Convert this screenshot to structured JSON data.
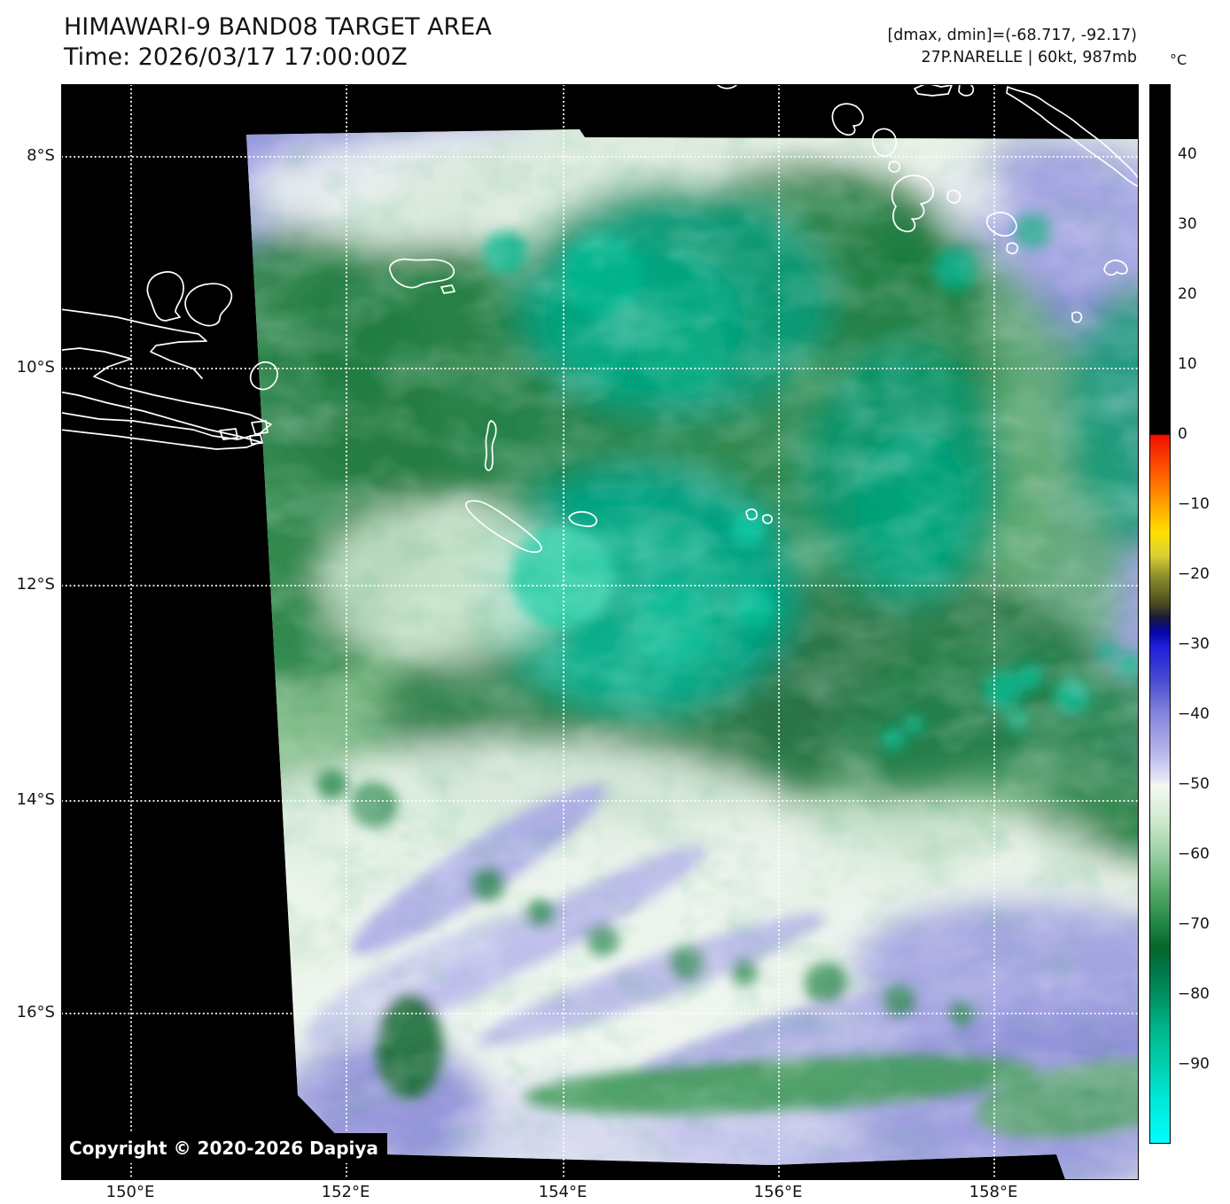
{
  "header": {
    "title": "HIMAWARI-9 BAND08 TARGET AREA",
    "time": "Time: 2026/03/17 17:00:00Z",
    "dmax_dmin": "[dmax, dmin]=(-68.717, -92.17)",
    "storm_info": "27P.NARELLE | 60kt, 987mb"
  },
  "map": {
    "copyright": "Copyright © 2020-2026 Dapiya",
    "x_tick_labels": [
      "150°E",
      "152°E",
      "154°E",
      "156°E",
      "158°E"
    ],
    "y_tick_labels": [
      "8°S",
      "10°S",
      "12°S",
      "14°S",
      "16°S"
    ]
  },
  "colorbar": {
    "unit": "°C",
    "tick_labels": [
      "40",
      "30",
      "20",
      "10",
      "0",
      "−10",
      "−20",
      "−30",
      "−40",
      "−50",
      "−60",
      "−70",
      "−80",
      "−90"
    ],
    "gradient_stops": [
      [
        "0%",
        "#000000"
      ],
      [
        "33.0%",
        "#000000"
      ],
      [
        "33.15%",
        "#f01000"
      ],
      [
        "36.4%",
        "#ff5500"
      ],
      [
        "39.7%",
        "#ffa300"
      ],
      [
        "42.3%",
        "#ffe000"
      ],
      [
        "44.5%",
        "#d8d034"
      ],
      [
        "46.4%",
        "#8f8f2c"
      ],
      [
        "49.0%",
        "#4c4c20"
      ],
      [
        "50.4%",
        "#17173c"
      ],
      [
        "51.7%",
        "#0505a8"
      ],
      [
        "53.0%",
        "#1d1dd8"
      ],
      [
        "56.3%",
        "#4b4bd0"
      ],
      [
        "59.6%",
        "#8787dc"
      ],
      [
        "62.9%",
        "#b4b4ea"
      ],
      [
        "65.4%",
        "#e0e0f5"
      ],
      [
        "66.2%",
        "#f4faf3"
      ],
      [
        "69.5%",
        "#cfe9cf"
      ],
      [
        "72.8%",
        "#97cfa2"
      ],
      [
        "76.1%",
        "#57ab6b"
      ],
      [
        "79.4%",
        "#1e8542"
      ],
      [
        "81.5%",
        "#07662b"
      ],
      [
        "83.2%",
        "#007343"
      ],
      [
        "86.4%",
        "#009465"
      ],
      [
        "89.2%",
        "#00b68d"
      ],
      [
        "92.5%",
        "#00cfae"
      ],
      [
        "96%",
        "#00e9da"
      ],
      [
        "100%",
        "#00fdfd"
      ]
    ]
  }
}
